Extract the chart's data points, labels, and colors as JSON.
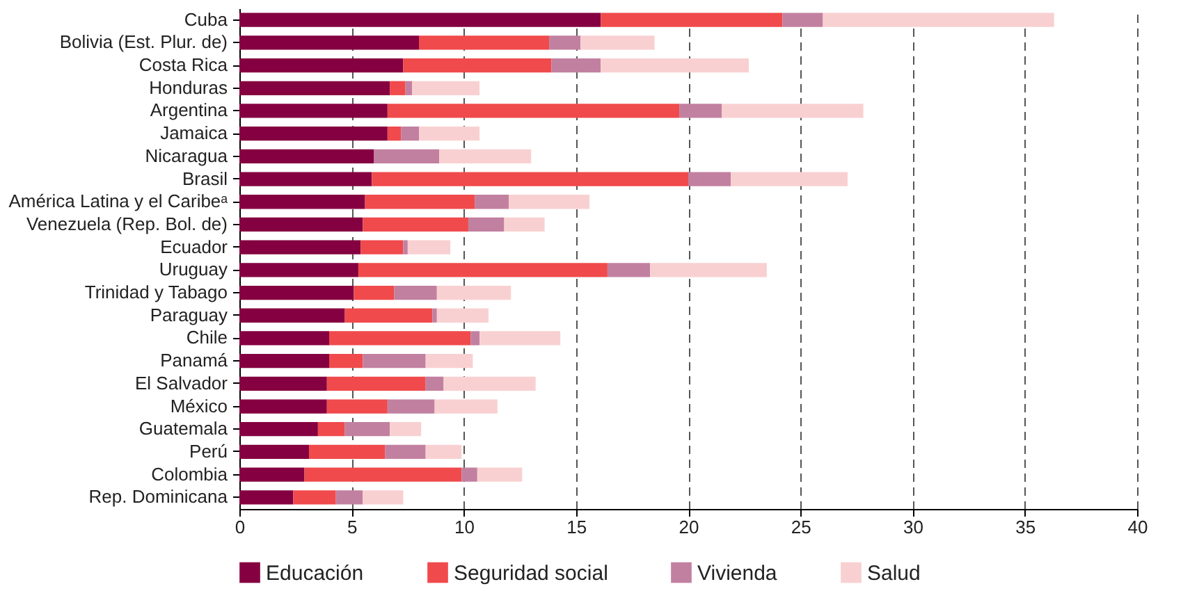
{
  "chart_data": {
    "type": "bar",
    "orientation": "horizontal",
    "stacked": true,
    "categories": [
      "Cuba",
      "Bolivia (Est. Plur. de)",
      "Costa Rica",
      "Honduras",
      "Argentina",
      "Jamaica",
      "Nicaragua",
      "Brasil",
      "América Latina y el Caribeᵃ",
      "Venezuela (Rep. Bol. de)",
      "Ecuador",
      "Uruguay",
      "Trinidad y Tabago",
      "Paraguay",
      "Chile",
      "Panamá",
      "El Salvador",
      "México",
      "Guatemala",
      "Perú",
      "Colombia",
      "Rep. Dominicana"
    ],
    "series": [
      {
        "name": "Educación",
        "color": "#850040",
        "values": [
          16.1,
          8.0,
          7.3,
          6.7,
          6.6,
          6.6,
          6.0,
          5.9,
          5.6,
          5.5,
          5.4,
          5.3,
          5.1,
          4.7,
          4.0,
          4.0,
          3.9,
          3.9,
          3.5,
          3.1,
          2.9,
          2.4
        ]
      },
      {
        "name": "Seguridad social",
        "color": "#f04a4c",
        "values": [
          8.1,
          5.8,
          6.6,
          0.7,
          13.0,
          0.6,
          0,
          14.1,
          4.9,
          4.7,
          1.9,
          11.1,
          1.8,
          3.9,
          6.3,
          1.5,
          4.4,
          2.7,
          1.2,
          3.4,
          7.0,
          1.9
        ]
      },
      {
        "name": "Vivienda",
        "color": "#c280a0",
        "values": [
          1.8,
          1.4,
          2.2,
          0.3,
          1.9,
          0.8,
          2.9,
          1.9,
          1.5,
          1.6,
          0.2,
          1.9,
          1.9,
          0.2,
          0.4,
          2.8,
          0.8,
          2.1,
          2.0,
          1.8,
          0.7,
          1.2
        ]
      },
      {
        "name": "Salud",
        "color": "#f9d0d1",
        "values": [
          10.3,
          3.3,
          6.6,
          3.0,
          6.3,
          2.7,
          4.1,
          5.2,
          3.6,
          1.8,
          1.9,
          5.2,
          3.3,
          2.3,
          3.6,
          2.1,
          4.1,
          2.8,
          1.4,
          1.6,
          2.0,
          1.8
        ]
      }
    ],
    "xlim": [
      0,
      40
    ],
    "xticks": [
      0,
      5,
      10,
      15,
      20,
      25,
      30,
      35,
      40
    ],
    "grid": "x",
    "legend": "bottom"
  }
}
